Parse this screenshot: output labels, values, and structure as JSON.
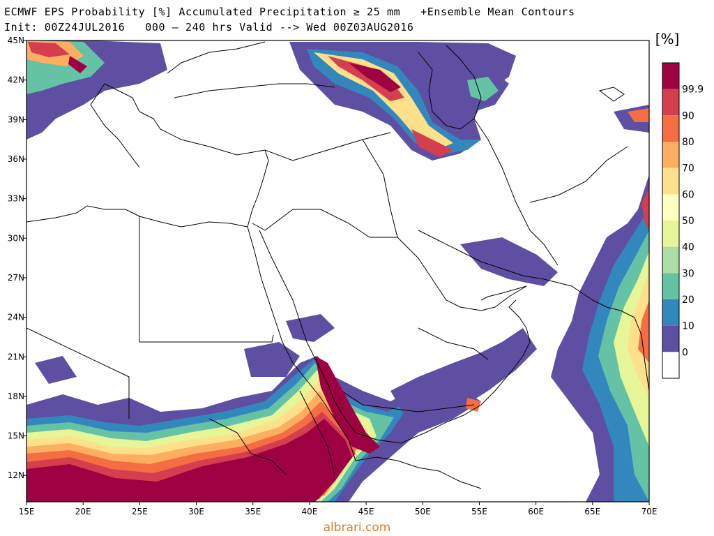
{
  "header": {
    "title_line1": "ECMWF EPS Probability [%] Accumulated Precipitation ≥ 25 mm   +Ensemble Mean Contours",
    "title_line2": "Init: 00Z24JUL2016   000 – 240 hrs Valid --> Wed 00Z03AUG2016"
  },
  "map": {
    "lon_range": [
      15,
      70
    ],
    "lat_range": [
      10,
      45
    ],
    "x_ticks": [
      "15E",
      "20E",
      "25E",
      "30E",
      "35E",
      "40E",
      "45E",
      "50E",
      "55E",
      "60E",
      "65E",
      "70E"
    ],
    "y_ticks": [
      "45N",
      "42N",
      "39N",
      "36N",
      "33N",
      "30N",
      "27N",
      "24N",
      "21N",
      "18N",
      "15N",
      "12N"
    ]
  },
  "colorbar": {
    "unit_label": "[%]",
    "levels": [
      {
        "label": "99.9",
        "color": "#9e0142"
      },
      {
        "label": "90",
        "color": "#d53e4f"
      },
      {
        "label": "80",
        "color": "#f46d43"
      },
      {
        "label": "70",
        "color": "#fdae61"
      },
      {
        "label": "60",
        "color": "#fee08b"
      },
      {
        "label": "50",
        "color": "#ffffbf"
      },
      {
        "label": "40",
        "color": "#e6f598"
      },
      {
        "label": "30",
        "color": "#abdda4"
      },
      {
        "label": "20",
        "color": "#66c2a5"
      },
      {
        "label": "10",
        "color": "#3288bd"
      },
      {
        "label": "0",
        "color": "#5e4fa2"
      }
    ],
    "below_color": "#ffffff"
  },
  "footer": {
    "watermark": "albrari.com"
  }
}
